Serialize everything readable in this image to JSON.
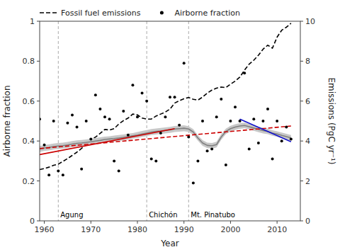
{
  "chart_data": {
    "type": "line",
    "xlabel": "Year",
    "ylabel": "Airborne fraction",
    "y2label": "Emissions (PgC yr⁻¹)",
    "xlim": [
      1959,
      2015
    ],
    "ylim": [
      0,
      1
    ],
    "y2lim": [
      0,
      10
    ],
    "xticks": [
      1960,
      1970,
      1980,
      1990,
      2000,
      2010
    ],
    "yticks": [
      0,
      0.2,
      0.4,
      0.6,
      0.8,
      1
    ],
    "y2ticks": [
      0,
      2,
      4,
      6,
      8,
      10
    ],
    "grid": false,
    "legend": "upper left",
    "annotations": [
      {
        "x": 1963,
        "text": "Agung",
        "color": "#aaaaaa",
        "line_style": "dashed"
      },
      {
        "x": 1982,
        "text": "Chichón",
        "color": "#aaaaaa",
        "line_style": "dashed"
      },
      {
        "x": 1991,
        "text": "Mt. Pinatubo",
        "color": "#aaaaaa",
        "line_style": "dashed"
      }
    ],
    "series": [
      {
        "name": "Fossil fuel emissions",
        "type": "line",
        "axis": "y2",
        "color": "#000000",
        "line_style": "dashed",
        "x": [
          1959,
          1960,
          1961,
          1962,
          1963,
          1964,
          1965,
          1966,
          1967,
          1968,
          1969,
          1970,
          1971,
          1972,
          1973,
          1974,
          1975,
          1976,
          1977,
          1978,
          1979,
          1980,
          1981,
          1982,
          1983,
          1984,
          1985,
          1986,
          1987,
          1988,
          1989,
          1990,
          1991,
          1992,
          1993,
          1994,
          1995,
          1996,
          1997,
          1998,
          1999,
          2000,
          2001,
          2002,
          2003,
          2004,
          2005,
          2006,
          2007,
          2008,
          2009,
          2010,
          2011,
          2012,
          2013
        ],
        "values": [
          2.57,
          2.62,
          2.69,
          2.78,
          2.84,
          2.98,
          3.12,
          3.28,
          3.44,
          3.63,
          3.82,
          4.05,
          4.2,
          4.38,
          4.58,
          4.55,
          4.62,
          4.85,
          5.02,
          5.15,
          5.35,
          5.31,
          5.15,
          5.1,
          5.1,
          5.25,
          5.35,
          5.45,
          5.6,
          5.9,
          6.02,
          6.12,
          6.18,
          6.09,
          6.05,
          6.2,
          6.4,
          6.55,
          6.65,
          6.7,
          6.68,
          6.85,
          7.0,
          7.2,
          7.55,
          7.85,
          8.05,
          8.3,
          8.6,
          8.8,
          8.65,
          9.2,
          9.55,
          9.7,
          9.9
        ]
      },
      {
        "name": "Airborne fraction",
        "type": "scatter",
        "color": "#000000",
        "marker": "dot",
        "x": [
          1959,
          1960,
          1961,
          1962,
          1963,
          1964,
          1965,
          1966,
          1967,
          1968,
          1969,
          1970,
          1971,
          1972,
          1973,
          1974,
          1975,
          1976,
          1977,
          1978,
          1979,
          1980,
          1981,
          1982,
          1983,
          1984,
          1985,
          1986,
          1987,
          1988,
          1989,
          1990,
          1991,
          1992,
          1993,
          1994,
          1995,
          1996,
          1997,
          1998,
          1999,
          2000,
          2001,
          2002,
          2003,
          2004,
          2005,
          2006,
          2007,
          2008,
          2009,
          2010,
          2011,
          2012,
          2013
        ],
        "values": [
          0.51,
          0.38,
          0.23,
          0.5,
          0.25,
          0.23,
          0.49,
          0.53,
          0.47,
          0.26,
          0.5,
          0.41,
          0.63,
          0.56,
          0.52,
          0.51,
          0.3,
          0.25,
          0.55,
          0.43,
          0.68,
          0.52,
          0.64,
          0.6,
          0.31,
          0.3,
          0.44,
          0.52,
          0.62,
          0.62,
          0.48,
          0.79,
          0.42,
          0.19,
          0.3,
          0.5,
          0.35,
          0.36,
          0.52,
          0.61,
          0.28,
          0.5,
          0.57,
          0.5,
          0.74,
          0.36,
          0.51,
          0.39,
          0.5,
          0.56,
          0.31,
          0.5,
          0.4,
          0.47,
          0.41
        ]
      },
      {
        "type": "band",
        "color": "#c8c8c8",
        "x": [
          1959,
          1960,
          1961,
          1962,
          1963,
          1964,
          1965,
          1966,
          1967,
          1968,
          1969,
          1970,
          1971,
          1972,
          1973,
          1974,
          1975,
          1976,
          1977,
          1978,
          1979,
          1980,
          1981,
          1982,
          1983,
          1984,
          1985,
          1986,
          1987,
          1988,
          1989,
          1990,
          1991,
          1992,
          1993,
          1994,
          1995,
          1996,
          1997,
          1998,
          1999,
          2000,
          2001,
          2002,
          2003,
          2004,
          2005,
          2006,
          2007,
          2008,
          2009,
          2010,
          2011,
          2012,
          2013
        ],
        "upper": [
          0.375,
          0.38,
          0.383,
          0.387,
          0.39,
          0.392,
          0.395,
          0.4,
          0.403,
          0.405,
          0.408,
          0.411,
          0.415,
          0.418,
          0.422,
          0.424,
          0.427,
          0.43,
          0.433,
          0.437,
          0.44,
          0.445,
          0.45,
          0.455,
          0.46,
          0.463,
          0.465,
          0.468,
          0.471,
          0.475,
          0.477,
          0.479,
          0.474,
          0.459,
          0.428,
          0.404,
          0.392,
          0.39,
          0.396,
          0.434,
          0.462,
          0.476,
          0.484,
          0.489,
          0.492,
          0.486,
          0.479,
          0.472,
          0.466,
          0.462,
          0.454,
          0.449,
          0.442,
          0.436,
          0.43
        ],
        "lower": [
          0.345,
          0.35,
          0.353,
          0.357,
          0.36,
          0.362,
          0.365,
          0.37,
          0.373,
          0.375,
          0.378,
          0.381,
          0.385,
          0.388,
          0.394,
          0.396,
          0.397,
          0.4,
          0.403,
          0.407,
          0.412,
          0.415,
          0.42,
          0.425,
          0.43,
          0.433,
          0.435,
          0.438,
          0.441,
          0.445,
          0.447,
          0.449,
          0.446,
          0.431,
          0.402,
          0.376,
          0.364,
          0.362,
          0.368,
          0.406,
          0.434,
          0.448,
          0.456,
          0.461,
          0.464,
          0.458,
          0.451,
          0.444,
          0.438,
          0.434,
          0.426,
          0.421,
          0.414,
          0.408,
          0.402
        ]
      },
      {
        "type": "line",
        "color": "#808080",
        "line_style": "solid",
        "x": [
          1959,
          1960,
          1961,
          1962,
          1963,
          1964,
          1965,
          1966,
          1967,
          1968,
          1969,
          1970,
          1971,
          1972,
          1973,
          1974,
          1975,
          1976,
          1977,
          1978,
          1979,
          1980,
          1981,
          1982,
          1983,
          1984,
          1985,
          1986,
          1987,
          1988,
          1989,
          1990,
          1991,
          1992,
          1993,
          1994,
          1995,
          1996,
          1997,
          1998,
          1999,
          2000,
          2001,
          2002,
          2003,
          2004,
          2005,
          2006,
          2007,
          2008,
          2009,
          2010,
          2011,
          2012,
          2013
        ],
        "values": [
          0.36,
          0.365,
          0.368,
          0.372,
          0.375,
          0.377,
          0.38,
          0.385,
          0.388,
          0.39,
          0.393,
          0.396,
          0.4,
          0.403,
          0.408,
          0.41,
          0.412,
          0.415,
          0.418,
          0.422,
          0.426,
          0.43,
          0.435,
          0.44,
          0.445,
          0.448,
          0.45,
          0.453,
          0.456,
          0.46,
          0.462,
          0.464,
          0.46,
          0.445,
          0.415,
          0.39,
          0.378,
          0.376,
          0.382,
          0.42,
          0.448,
          0.462,
          0.47,
          0.475,
          0.478,
          0.472,
          0.465,
          0.458,
          0.452,
          0.448,
          0.44,
          0.435,
          0.428,
          0.422,
          0.416
        ]
      },
      {
        "type": "line",
        "color": "#cc0000",
        "line_style": "dashed",
        "x": [
          1959,
          2013
        ],
        "values": [
          0.362,
          0.475
        ]
      },
      {
        "type": "line",
        "color": "#cc0000",
        "line_style": "solid",
        "x": [
          1959,
          1988
        ],
        "values": [
          0.332,
          0.462
        ]
      },
      {
        "type": "line",
        "color": "#1111cc",
        "line_style": "solid",
        "x": [
          2002,
          2013
        ],
        "values": [
          0.51,
          0.396
        ]
      }
    ]
  }
}
